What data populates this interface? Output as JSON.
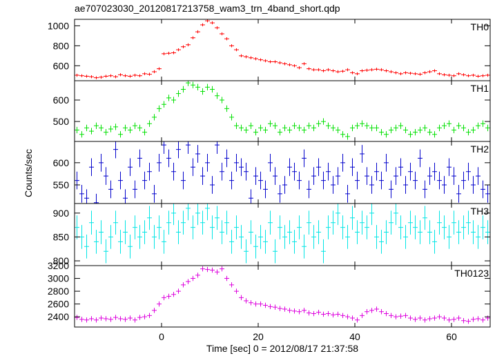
{
  "title": "ae707023030_20120817213758_wam3_trn_4band_short.qdp",
  "xlabel": "Time [sec] 0 = 2012/08/17 21:37:58",
  "ylabel": "Counts/sec",
  "xlim": [
    -18,
    68
  ],
  "xticks": [
    0,
    20,
    40,
    60
  ],
  "x": [
    -17.5,
    -16.5,
    -15.5,
    -14.5,
    -13.5,
    -12.5,
    -11.5,
    -10.5,
    -9.5,
    -8.5,
    -7.5,
    -6.5,
    -5.5,
    -4.5,
    -3.5,
    -2.5,
    -1.5,
    -0.5,
    0.5,
    1.5,
    2.5,
    3.5,
    4.5,
    5.5,
    6.5,
    7.5,
    8.5,
    9.5,
    10.5,
    11.5,
    12.5,
    13.5,
    14.5,
    15.5,
    16.5,
    17.5,
    18.5,
    19.5,
    20.5,
    21.5,
    22.5,
    23.5,
    24.5,
    25.5,
    26.5,
    27.5,
    28.5,
    29.5,
    30.5,
    31.5,
    32.5,
    33.5,
    34.5,
    35.5,
    36.5,
    37.5,
    38.5,
    39.5,
    40.5,
    41.5,
    42.5,
    43.5,
    44.5,
    45.5,
    46.5,
    47.5,
    48.5,
    49.5,
    50.5,
    51.5,
    52.5,
    53.5,
    54.5,
    55.5,
    56.5,
    57.5,
    58.5,
    59.5,
    60.5,
    61.5,
    62.5,
    63.5,
    64.5,
    65.5,
    66.5,
    67.5
  ],
  "chart_data": [
    {
      "type": "step",
      "label": "TH0",
      "color": "#ff0000",
      "ylim": [
        450,
        1065
      ],
      "yticks": [
        600,
        800,
        1000
      ],
      "yerr": 15,
      "values": [
        505,
        500,
        495,
        490,
        480,
        485,
        495,
        500,
        490,
        510,
        500,
        495,
        505,
        500,
        520,
        515,
        540,
        570,
        720,
        725,
        730,
        760,
        790,
        810,
        880,
        940,
        1010,
        1050,
        1030,
        980,
        920,
        870,
        800,
        760,
        700,
        690,
        680,
        670,
        660,
        650,
        640,
        640,
        630,
        620,
        610,
        600,
        580,
        620,
        570,
        560,
        560,
        550,
        560,
        550,
        540,
        545,
        560,
        530,
        520,
        550,
        555,
        560,
        565,
        560,
        550,
        540,
        530,
        520,
        530,
        525,
        520,
        515,
        530,
        540,
        550,
        520,
        510,
        505,
        500,
        520,
        510,
        500,
        505,
        495,
        500,
        505
      ]
    },
    {
      "type": "step",
      "label": "TH1",
      "color": "#00e000",
      "ylim": [
        407,
        690
      ],
      "yticks": [
        500,
        600
      ],
      "yerr": 15,
      "values": [
        460,
        440,
        470,
        455,
        480,
        470,
        450,
        465,
        475,
        440,
        470,
        460,
        480,
        470,
        450,
        490,
        520,
        560,
        580,
        610,
        600,
        630,
        650,
        680,
        670,
        660,
        640,
        660,
        650,
        620,
        600,
        560,
        520,
        480,
        470,
        460,
        480,
        450,
        470,
        460,
        490,
        480,
        450,
        470,
        460,
        480,
        470,
        460,
        480,
        470,
        490,
        500,
        480,
        470,
        460,
        440,
        430,
        470,
        480,
        490,
        480,
        470,
        470,
        450,
        440,
        460,
        470,
        480,
        460,
        440,
        450,
        460,
        470,
        450,
        440,
        470,
        480,
        490,
        460,
        480,
        470,
        450,
        460,
        480,
        490,
        470
      ]
    },
    {
      "type": "step",
      "label": "TH2",
      "color": "#0000cc",
      "ylim": [
        508,
        648
      ],
      "yticks": [
        550,
        600
      ],
      "yerr": 20,
      "values": [
        560,
        530,
        520,
        590,
        510,
        600,
        570,
        540,
        630,
        560,
        520,
        590,
        540,
        610,
        560,
        580,
        530,
        600,
        640,
        610,
        580,
        630,
        560,
        640,
        590,
        620,
        570,
        600,
        550,
        640,
        580,
        610,
        560,
        600,
        590,
        580,
        520,
        570,
        560,
        540,
        600,
        570,
        530,
        550,
        590,
        580,
        560,
        610,
        540,
        570,
        590,
        560,
        580,
        550,
        570,
        600,
        530,
        590,
        560,
        620,
        570,
        550,
        580,
        560,
        600,
        540,
        570,
        590,
        550,
        580,
        560,
        610,
        540,
        570,
        580,
        560,
        550,
        590,
        570,
        530,
        560,
        580,
        550,
        570,
        540,
        530
      ]
    },
    {
      "type": "step",
      "label": "TH3",
      "color": "#00e5e5",
      "ylim": [
        790,
        920
      ],
      "yticks": [
        800,
        850,
        900
      ],
      "yerr": 25,
      "values": [
        870,
        850,
        830,
        880,
        840,
        860,
        820,
        850,
        880,
        840,
        860,
        830,
        870,
        850,
        860,
        890,
        850,
        870,
        840,
        880,
        900,
        860,
        880,
        910,
        870,
        900,
        880,
        910,
        870,
        890,
        860,
        880,
        840,
        870,
        850,
        820,
        860,
        830,
        850,
        840,
        880,
        820,
        870,
        850,
        860,
        840,
        870,
        830,
        880,
        850,
        860,
        820,
        870,
        880,
        900,
        870,
        850,
        890,
        860,
        880,
        870,
        900,
        850,
        840,
        860,
        880,
        900,
        870,
        850,
        880,
        870,
        860,
        890,
        860,
        840,
        880,
        870,
        850,
        880,
        860,
        870,
        880,
        860,
        850,
        870,
        860
      ]
    },
    {
      "type": "step",
      "label": "TH0123",
      "color": "#dd00dd",
      "ylim": [
        2240,
        3200
      ],
      "yticks": [
        2400,
        2600,
        2800,
        3000,
        3200
      ],
      "yerr": 40,
      "values": [
        2390,
        2360,
        2350,
        2370,
        2350,
        2380,
        2370,
        2360,
        2390,
        2370,
        2360,
        2380,
        2350,
        2390,
        2400,
        2420,
        2500,
        2600,
        2700,
        2720,
        2750,
        2800,
        2900,
        2950,
        3000,
        3050,
        3150,
        3140,
        3130,
        3100,
        3150,
        3000,
        2900,
        2800,
        2700,
        2650,
        2620,
        2600,
        2600,
        2580,
        2560,
        2550,
        2530,
        2520,
        2500,
        2490,
        2480,
        2500,
        2460,
        2450,
        2470,
        2440,
        2450,
        2430,
        2440,
        2420,
        2400,
        2380,
        2350,
        2420,
        2480,
        2500,
        2520,
        2480,
        2450,
        2420,
        2400,
        2410,
        2420,
        2380,
        2360,
        2380,
        2350,
        2370,
        2380,
        2400,
        2380,
        2350,
        2360,
        2380,
        2340,
        2330,
        2360,
        2370,
        2350,
        2380
      ]
    }
  ]
}
